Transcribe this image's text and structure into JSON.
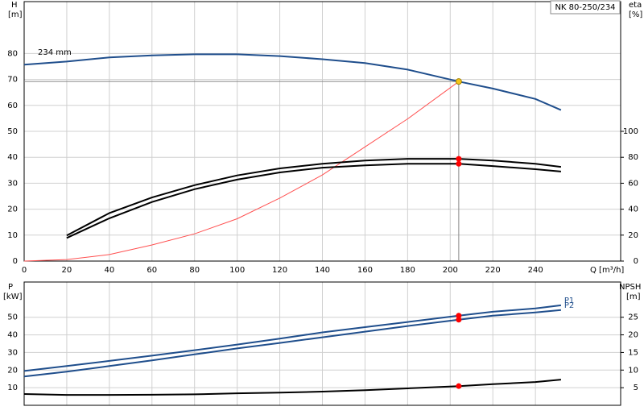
{
  "chart_data": [
    {
      "type": "line",
      "title": "NK 80-250/234",
      "annotation": "234 mm",
      "x_label": "Q [m³/h]",
      "y_label": [
        "H",
        "[m]"
      ],
      "y2_label": [
        "eta",
        "[%]"
      ],
      "x": [
        0,
        20,
        40,
        60,
        80,
        100,
        120,
        140,
        160,
        180,
        204,
        220,
        240,
        252
      ],
      "xlim": [
        0,
        280
      ],
      "xticks": [
        0,
        20,
        40,
        60,
        80,
        100,
        120,
        140,
        160,
        180,
        200,
        220,
        240
      ],
      "ylim": [
        0,
        100
      ],
      "yticks": [
        0,
        10,
        20,
        30,
        40,
        50,
        60,
        70,
        80
      ],
      "y2lim": [
        0,
        200
      ],
      "y2ticks": [
        0,
        20,
        40,
        60,
        80,
        100
      ],
      "grid": true,
      "series": [
        {
          "color": "#1f4e8c",
          "values": [
            75.7,
            76.9,
            78.5,
            79.3,
            79.7,
            79.7,
            79,
            77.8,
            76.3,
            73.8,
            69.2,
            66.5,
            62.5,
            58.2
          ]
        },
        {
          "color": "#ff5050",
          "values": [
            0,
            0.6,
            2.5,
            6.2,
            10.5,
            16.3,
            24.3,
            33.2,
            44,
            54.8,
            69.2,
            null,
            null,
            null
          ]
        },
        {
          "color": "#000000",
          "axis": "y2",
          "values": [
            null,
            19.7,
            37,
            49,
            58.5,
            66,
            71.4,
            75,
            77.5,
            78.8,
            78.8,
            77.5,
            75,
            72.6
          ]
        },
        {
          "color": "#000000",
          "axis": "y2",
          "values": [
            null,
            17.8,
            33,
            45.5,
            55.4,
            62.8,
            68.3,
            72,
            73.8,
            75,
            75,
            73.2,
            70.8,
            69
          ]
        }
      ],
      "points": [
        {
          "x": 204,
          "value": 69.2,
          "axis": "y",
          "color": "#f5c518",
          "guide": true
        },
        {
          "x": 204,
          "value": 78.8,
          "axis": "y2",
          "color": "#ff0000"
        },
        {
          "x": 204,
          "value": 75,
          "axis": "y2",
          "color": "#ff0000"
        }
      ]
    },
    {
      "type": "line",
      "y_label": [
        "P",
        "[kW]"
      ],
      "y2_label": [
        "NPSH",
        "[m]"
      ],
      "x": [
        0,
        20,
        40,
        60,
        80,
        100,
        120,
        140,
        160,
        180,
        204,
        220,
        240,
        252
      ],
      "xlim": [
        0,
        280
      ],
      "xticks": [
        0,
        20,
        40,
        60,
        80,
        100,
        120,
        140,
        160,
        180,
        200,
        220,
        240
      ],
      "xtick_labels": false,
      "ylim": [
        0,
        70
      ],
      "yticks": [
        10,
        20,
        30,
        40,
        50
      ],
      "y2lim": [
        0,
        35
      ],
      "y2ticks": [
        5,
        10,
        15,
        20,
        25
      ],
      "grid": true,
      "series": [
        {
          "name": "P1",
          "color": "#1f4e8c",
          "values": [
            19.5,
            22.3,
            25.2,
            28.2,
            31.3,
            34.5,
            37.9,
            41.4,
            44.4,
            47.3,
            50.9,
            53.1,
            55,
            56.8
          ]
        },
        {
          "name": "P2",
          "color": "#1f4e8c",
          "values": [
            16.4,
            19.1,
            22.3,
            25.5,
            28.9,
            32.3,
            35.4,
            38.6,
            41.8,
            45,
            48.6,
            50.9,
            52.7,
            54.1
          ]
        },
        {
          "color": "#000000",
          "axis": "y2",
          "values": [
            3.2,
            2.95,
            2.95,
            3.0,
            3.1,
            3.4,
            3.6,
            3.9,
            4.3,
            4.8,
            5.45,
            6.0,
            6.6,
            7.3
          ]
        }
      ],
      "points": [
        {
          "x": 204,
          "value": 50.9,
          "axis": "y",
          "color": "#ff0000"
        },
        {
          "x": 204,
          "value": 48.6,
          "axis": "y",
          "color": "#ff0000"
        },
        {
          "x": 204,
          "value": 5.45,
          "axis": "y2",
          "color": "#ff0000"
        }
      ]
    }
  ]
}
